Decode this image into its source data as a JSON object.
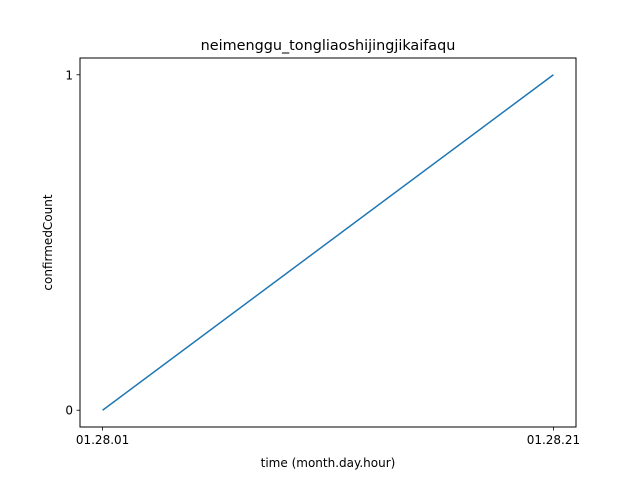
{
  "chart_data": {
    "type": "line",
    "title": "neimenggu_tongliaoshijingjikaifaqu",
    "xlabel": "time (month.day.hour)",
    "ylabel": "confirmedCount",
    "x": [
      "01.28.01",
      "01.28.21"
    ],
    "series": [
      {
        "values": [
          0,
          1
        ],
        "color": "#1f77b4"
      }
    ],
    "xticks": [
      "01.28.01",
      "01.28.21"
    ],
    "yticks": [
      "0",
      "1"
    ],
    "ylim": [
      -0.05,
      1.05
    ],
    "grid": false
  }
}
